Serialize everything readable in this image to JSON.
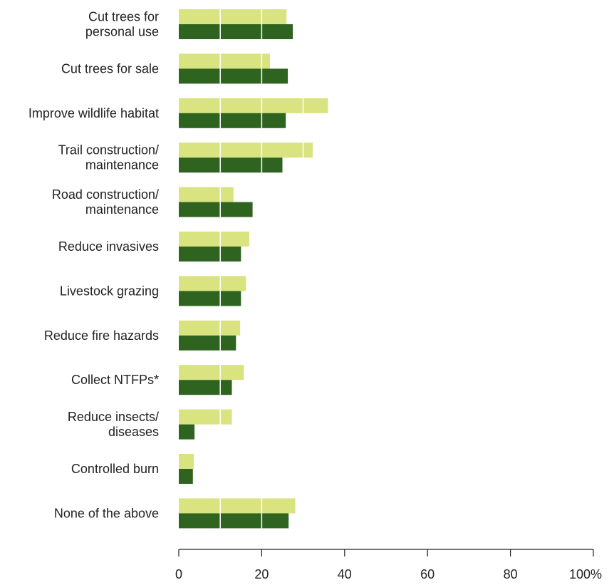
{
  "chart_data": {
    "type": "bar",
    "orientation": "horizontal",
    "categories": [
      [
        "Cut trees for",
        "personal use"
      ],
      [
        "Cut trees for sale"
      ],
      [
        "Improve wildlife habitat"
      ],
      [
        "Trail construction/",
        "maintenance"
      ],
      [
        "Road construction/",
        "maintenance"
      ],
      [
        "Reduce invasives"
      ],
      [
        "Livestock grazing"
      ],
      [
        "Reduce fire hazards"
      ],
      [
        "Collect NTFPs*"
      ],
      [
        "Reduce insects/",
        "diseases"
      ],
      [
        "Controlled burn"
      ],
      [
        "None of the above"
      ]
    ],
    "series": [
      {
        "color": "#d9e37f",
        "values": [
          26,
          22,
          36,
          32.3,
          13.2,
          17,
          16.2,
          14.8,
          15.7,
          12.8,
          3.6,
          28.1
        ]
      },
      {
        "color": "#2f6320",
        "values": [
          27.5,
          26.3,
          25.8,
          25,
          17.8,
          15,
          15,
          13.8,
          12.8,
          3.8,
          3.4,
          26.5
        ]
      }
    ],
    "xlim": [
      0,
      100
    ],
    "xticks": [
      0,
      20,
      40,
      60,
      80,
      100
    ],
    "xtick_labels": [
      "0",
      "20",
      "40",
      "60",
      "80",
      "100%"
    ],
    "gridlines_on_bars": [
      10,
      20,
      30
    ],
    "gridline_color": "#ffffff",
    "title": "",
    "xlabel": "",
    "ylabel": ""
  }
}
